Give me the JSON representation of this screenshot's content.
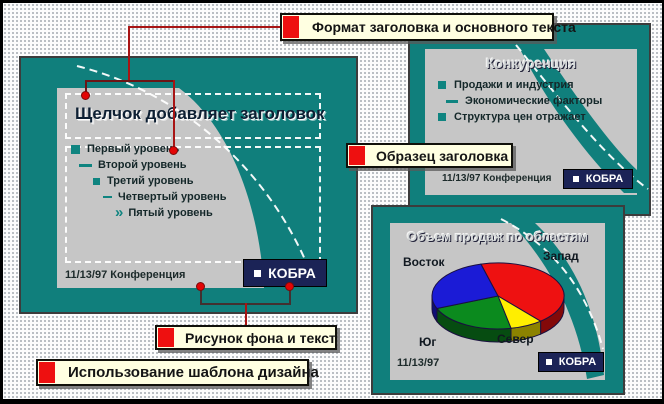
{
  "annotations": {
    "format_label": "Формат заголовка и основного текста",
    "title_sample_label": "Образец заголовка",
    "background_label": "Рисунок фона и текст",
    "template_label": "Использование шаблона дизайна"
  },
  "main_slide": {
    "title": "Щелчок добавляет заголовок",
    "bullets": [
      "Первый уровень",
      "Второй уровень",
      "Третий уровень",
      "Четвертый уровень",
      "Пятый уровень"
    ],
    "date": "11/13/97",
    "footer": "Конференция",
    "logo": "КОБРА"
  },
  "competition_slide": {
    "title": "Конкуренция",
    "bullets": [
      "Продажи и индустрия",
      "Экономические факторы",
      "Структура цен отражает"
    ],
    "date": "11/13/97",
    "footer": "Конференция",
    "logo": "КОБРА"
  },
  "sales_slide": {
    "date": "11/13/97",
    "logo": "КОБРА"
  },
  "chart_data": {
    "type": "pie",
    "title": "Объем продаж по областям",
    "start_angle_deg": -15,
    "depth_3d": true,
    "legend_position": "around",
    "slices": [
      {
        "label": "Запад",
        "value": 43,
        "color": "#ee1111"
      },
      {
        "label": "Север",
        "value": 8,
        "color": "#ffee00"
      },
      {
        "label": "Юг",
        "value": 22,
        "color": "#0b8a1e"
      },
      {
        "label": "Восток",
        "value": 27,
        "color": "#1b1bd6"
      }
    ]
  },
  "colors": {
    "teal": "#107f7c",
    "slide_gray": "#c6c6c6",
    "navy": "#1b2356",
    "callout_bg": "#ffffe1",
    "accent_red": "#ee1010"
  }
}
